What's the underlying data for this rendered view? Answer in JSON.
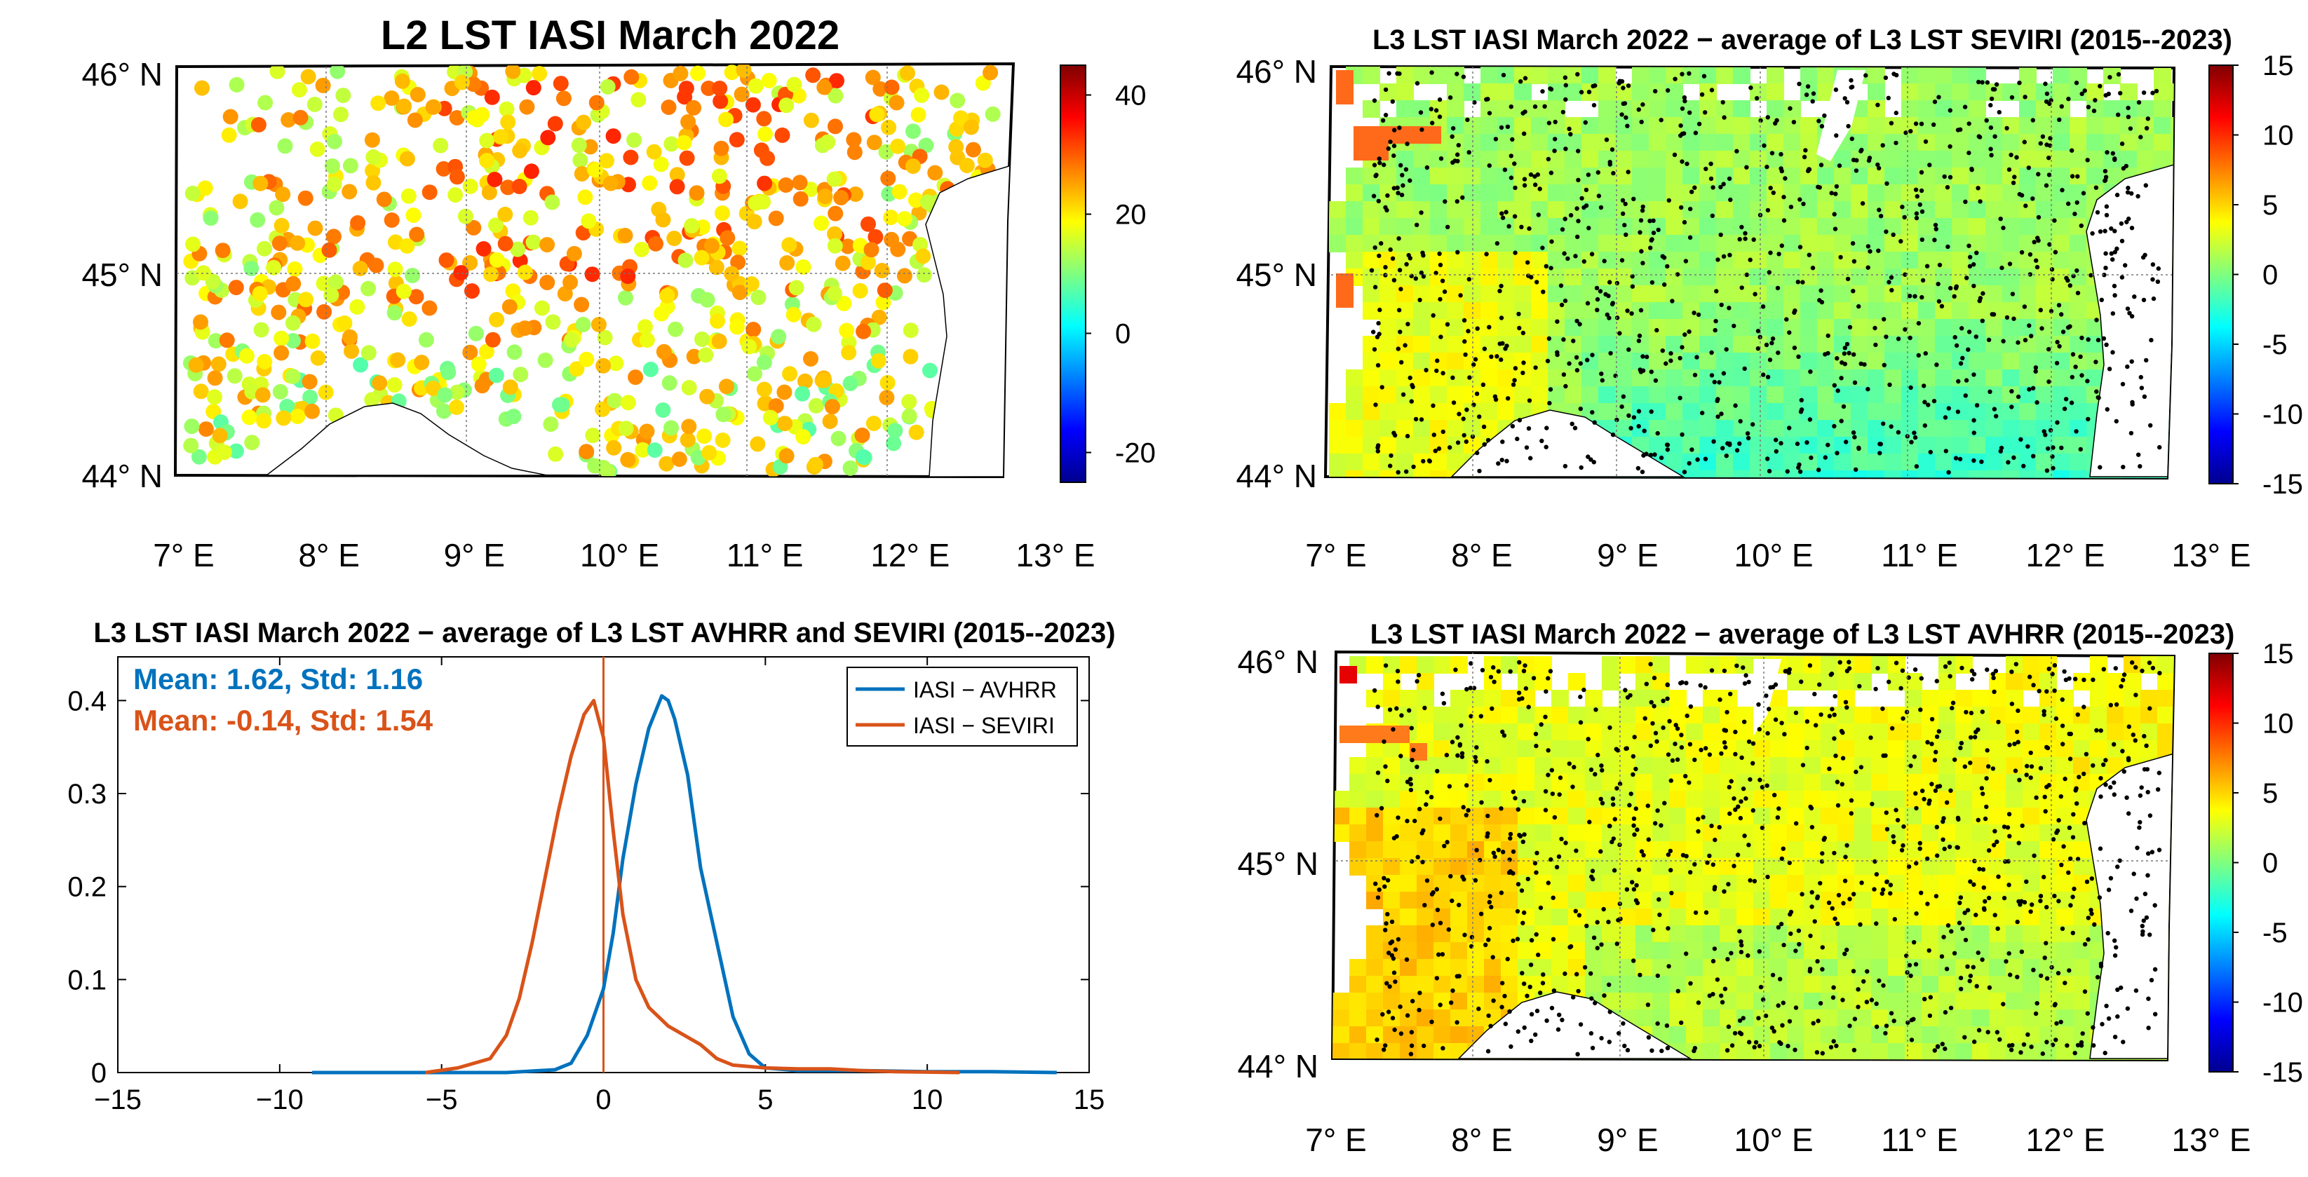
{
  "chart_data": [
    {
      "type": "map",
      "title": "L2 LST IASI March 2022",
      "lat_ticks": [
        "46° N",
        "45° N",
        "44° N"
      ],
      "lon_ticks": [
        "7° E",
        "8° E",
        "9° E",
        "10° E",
        "11° E",
        "12° E",
        "13° E"
      ],
      "extent": {
        "lon": [
          7,
          13
        ],
        "lat": [
          44,
          46
        ]
      },
      "colorbar": {
        "range": [
          -25,
          45
        ],
        "ticks": [
          "40",
          "20",
          "0",
          "-20"
        ],
        "tick_values": [
          40,
          20,
          0,
          -20
        ],
        "colormap": "jet"
      },
      "marker": "dots, 2022-03 L2 LST values mostly 10 to 30"
    },
    {
      "type": "map",
      "title": "L3 LST IASI March 2022 − average of L3 LST SEVIRI (2015--2023)",
      "lat_ticks": [
        "46° N",
        "45° N",
        "44° N"
      ],
      "lon_ticks": [
        "7° E",
        "8° E",
        "9° E",
        "10° E",
        "11° E",
        "12° E",
        "13° E"
      ],
      "extent": {
        "lon": [
          7,
          13
        ],
        "lat": [
          44,
          46
        ]
      },
      "colorbar": {
        "range": [
          -15,
          15
        ],
        "ticks": [
          "15",
          "10",
          "5",
          "0",
          "-5",
          "-10",
          "-15"
        ],
        "tick_values": [
          15,
          10,
          5,
          0,
          -5,
          -10,
          -15
        ],
        "colormap": "jet"
      }
    },
    {
      "type": "line",
      "title": "L3 LST IASI March 2022 − average of L3 LST AVHRR and SEVIRI (2015--2023)",
      "xlim": [
        -15,
        15
      ],
      "ylim": [
        0,
        0.45
      ],
      "x_ticks": [
        "−15",
        "−10",
        "−5",
        "0",
        "5",
        "10",
        "15"
      ],
      "x_tick_values": [
        -15,
        -10,
        -5,
        0,
        5,
        10,
        15
      ],
      "y_ticks": [
        "0",
        "0.1",
        "0.2",
        "0.3",
        "0.4"
      ],
      "y_tick_values": [
        0,
        0.1,
        0.2,
        0.3,
        0.4
      ],
      "vline": 0,
      "annotations": [
        "Mean: 1.62, Std: 1.16",
        "Mean: -0.14, Std: 1.54"
      ],
      "series": [
        {
          "name": "IASI − AVHRR",
          "color": "#0072BD",
          "x": [
            -9,
            -5,
            -3,
            -1.5,
            -1,
            -0.5,
            0,
            0.3,
            0.6,
            1.0,
            1.4,
            1.8,
            2.0,
            2.2,
            2.6,
            3.0,
            3.5,
            4.0,
            4.5,
            5.0,
            6,
            8,
            10,
            12,
            14
          ],
          "y": [
            0,
            0,
            0,
            0.003,
            0.01,
            0.04,
            0.09,
            0.15,
            0.23,
            0.31,
            0.37,
            0.405,
            0.4,
            0.38,
            0.32,
            0.22,
            0.14,
            0.06,
            0.02,
            0.005,
            0.002,
            0.002,
            0.001,
            0.001,
            0
          ]
        },
        {
          "name": "IASI − SEVIRI",
          "color": "#D95319",
          "x": [
            -5.5,
            -4.5,
            -3.5,
            -3.0,
            -2.6,
            -2.2,
            -1.8,
            -1.4,
            -1.0,
            -0.6,
            -0.3,
            0,
            0.3,
            0.6,
            1.0,
            1.4,
            2.0,
            2.5,
            3.0,
            3.5,
            4.0,
            5.0,
            6.0,
            7.0,
            8.0,
            9.0,
            11.0
          ],
          "y": [
            0,
            0.005,
            0.015,
            0.04,
            0.08,
            0.14,
            0.21,
            0.28,
            0.34,
            0.385,
            0.4,
            0.36,
            0.26,
            0.17,
            0.1,
            0.07,
            0.05,
            0.04,
            0.03,
            0.015,
            0.008,
            0.005,
            0.004,
            0.004,
            0.002,
            0.001,
            0
          ]
        }
      ]
    },
    {
      "type": "map",
      "title": "L3 LST IASI March 2022 − average of L3 LST AVHRR (2015--2023)",
      "lat_ticks": [
        "46° N",
        "45° N",
        "44° N"
      ],
      "lon_ticks": [
        "7° E",
        "8° E",
        "9° E",
        "10° E",
        "11° E",
        "12° E",
        "13° E"
      ],
      "extent": {
        "lon": [
          7,
          13
        ],
        "lat": [
          44,
          46
        ]
      },
      "colorbar": {
        "range": [
          -15,
          15
        ],
        "ticks": [
          "15",
          "10",
          "5",
          "0",
          "-5",
          "-10",
          "-15"
        ],
        "tick_values": [
          15,
          10,
          5,
          0,
          -5,
          -10,
          -15
        ],
        "colormap": "jet"
      }
    }
  ]
}
